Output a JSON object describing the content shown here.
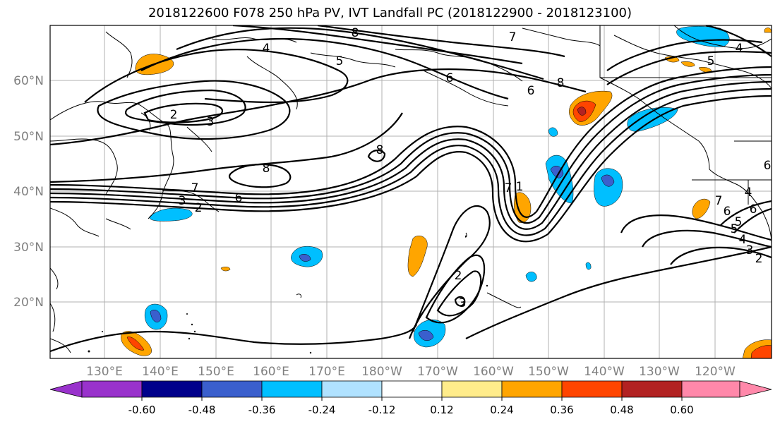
{
  "title": "2018122600 F078 250 hPa PV, IVT Landfall PC (2018122900 - 2018123100)",
  "map": {
    "lat_labels": [
      "60°N",
      "50°N",
      "40°N",
      "30°N",
      "20°N"
    ],
    "lon_labels": [
      "130°E",
      "140°E",
      "150°E",
      "160°E",
      "170°E",
      "180°W",
      "170°W",
      "160°W",
      "150°W",
      "140°W",
      "130°W",
      "120°W"
    ],
    "label_color": "#808080",
    "grid_color": "#b0b0b0",
    "contour_labels": [
      "8",
      "4",
      "5",
      "6",
      "7",
      "2",
      "3",
      "8",
      "8",
      "7",
      "6",
      "3",
      "2",
      "7",
      "2",
      "3",
      "6",
      "8",
      "6",
      "5",
      "4",
      "1",
      "6",
      "4",
      "5",
      "7",
      "6",
      "5",
      "4",
      "3",
      "2"
    ]
  },
  "colorbar": {
    "tick_labels": [
      "-0.60",
      "-0.48",
      "-0.36",
      "-0.24",
      "-0.12",
      "0.12",
      "0.24",
      "0.36",
      "0.48",
      "0.60"
    ],
    "colors": [
      "#9932cc",
      "#00008b",
      "#3a5fcd",
      "#00bfff",
      "#b0e2ff",
      "#ffffff",
      "#ffec8b",
      "#ffa500",
      "#ff4500",
      "#b22222",
      "#ff88aa"
    ]
  }
}
